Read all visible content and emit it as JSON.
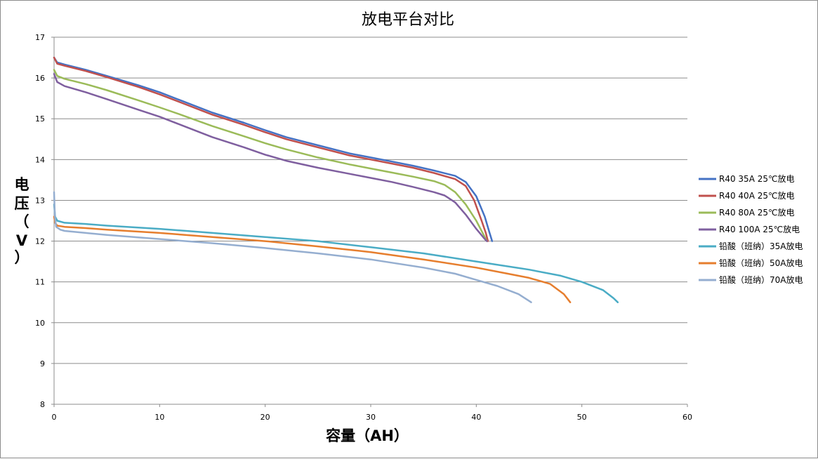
{
  "chart_data": {
    "type": "line",
    "title": "放电平台对比",
    "xlabel": "容量（AH）",
    "ylabel_chars": [
      "电",
      "压",
      "（",
      "V",
      "）"
    ],
    "xlim": [
      0,
      60
    ],
    "ylim": [
      8,
      17
    ],
    "x_ticks": [
      0,
      10,
      20,
      30,
      40,
      50,
      60
    ],
    "y_ticks": [
      8,
      9,
      10,
      11,
      12,
      13,
      14,
      15,
      16,
      17
    ],
    "grid": "horizontal",
    "legend_position": "right",
    "series": [
      {
        "name": "R40 35A 25℃放电",
        "color": "#4472c4",
        "points": [
          [
            0,
            16.5
          ],
          [
            0.3,
            16.38
          ],
          [
            1,
            16.33
          ],
          [
            3,
            16.2
          ],
          [
            5,
            16.05
          ],
          [
            8,
            15.82
          ],
          [
            10,
            15.65
          ],
          [
            12,
            15.45
          ],
          [
            15,
            15.15
          ],
          [
            18,
            14.9
          ],
          [
            20,
            14.72
          ],
          [
            22,
            14.55
          ],
          [
            25,
            14.35
          ],
          [
            28,
            14.15
          ],
          [
            30,
            14.05
          ],
          [
            32,
            13.95
          ],
          [
            34,
            13.85
          ],
          [
            36,
            13.73
          ],
          [
            38,
            13.6
          ],
          [
            39,
            13.45
          ],
          [
            40,
            13.1
          ],
          [
            40.8,
            12.6
          ],
          [
            41.2,
            12.25
          ],
          [
            41.5,
            12.0
          ]
        ]
      },
      {
        "name": "R40 40A 25℃放电",
        "color": "#c0504d",
        "points": [
          [
            0,
            16.5
          ],
          [
            0.3,
            16.35
          ],
          [
            1,
            16.3
          ],
          [
            3,
            16.17
          ],
          [
            5,
            16.02
          ],
          [
            8,
            15.78
          ],
          [
            10,
            15.6
          ],
          [
            12,
            15.4
          ],
          [
            15,
            15.1
          ],
          [
            18,
            14.85
          ],
          [
            20,
            14.67
          ],
          [
            22,
            14.5
          ],
          [
            25,
            14.3
          ],
          [
            28,
            14.1
          ],
          [
            30,
            14.0
          ],
          [
            32,
            13.9
          ],
          [
            34,
            13.8
          ],
          [
            36,
            13.67
          ],
          [
            38,
            13.52
          ],
          [
            39,
            13.35
          ],
          [
            39.8,
            13.0
          ],
          [
            40.5,
            12.5
          ],
          [
            40.9,
            12.2
          ],
          [
            41.1,
            12.0
          ]
        ]
      },
      {
        "name": "R40 80A 25℃放电",
        "color": "#9bbb59",
        "points": [
          [
            0,
            16.2
          ],
          [
            0.3,
            16.05
          ],
          [
            1,
            15.98
          ],
          [
            3,
            15.85
          ],
          [
            5,
            15.7
          ],
          [
            8,
            15.45
          ],
          [
            10,
            15.28
          ],
          [
            12,
            15.1
          ],
          [
            15,
            14.82
          ],
          [
            18,
            14.57
          ],
          [
            20,
            14.4
          ],
          [
            22,
            14.25
          ],
          [
            25,
            14.05
          ],
          [
            28,
            13.88
          ],
          [
            30,
            13.78
          ],
          [
            32,
            13.68
          ],
          [
            34,
            13.58
          ],
          [
            36,
            13.47
          ],
          [
            37,
            13.38
          ],
          [
            38,
            13.2
          ],
          [
            39,
            12.9
          ],
          [
            40,
            12.5
          ],
          [
            40.6,
            12.2
          ],
          [
            41.0,
            12.0
          ]
        ]
      },
      {
        "name": "R40 100A 25℃放电",
        "color": "#7f5f9f",
        "points": [
          [
            0,
            16.1
          ],
          [
            0.3,
            15.9
          ],
          [
            1,
            15.8
          ],
          [
            3,
            15.65
          ],
          [
            5,
            15.48
          ],
          [
            8,
            15.22
          ],
          [
            10,
            15.05
          ],
          [
            12,
            14.85
          ],
          [
            15,
            14.55
          ],
          [
            18,
            14.3
          ],
          [
            20,
            14.12
          ],
          [
            22,
            13.97
          ],
          [
            25,
            13.8
          ],
          [
            28,
            13.65
          ],
          [
            30,
            13.55
          ],
          [
            32,
            13.45
          ],
          [
            34,
            13.33
          ],
          [
            36,
            13.2
          ],
          [
            37,
            13.12
          ],
          [
            38,
            12.95
          ],
          [
            39,
            12.65
          ],
          [
            40,
            12.3
          ],
          [
            40.8,
            12.05
          ],
          [
            41.0,
            12.0
          ]
        ]
      },
      {
        "name": "铅酸（班纳）35A放电",
        "color": "#4aacc5",
        "points": [
          [
            0,
            12.9
          ],
          [
            0.1,
            12.6
          ],
          [
            0.3,
            12.5
          ],
          [
            1,
            12.45
          ],
          [
            3,
            12.42
          ],
          [
            5,
            12.38
          ],
          [
            10,
            12.3
          ],
          [
            15,
            12.2
          ],
          [
            20,
            12.1
          ],
          [
            25,
            12.0
          ],
          [
            30,
            11.85
          ],
          [
            35,
            11.7
          ],
          [
            40,
            11.5
          ],
          [
            45,
            11.3
          ],
          [
            48,
            11.15
          ],
          [
            50,
            11.0
          ],
          [
            52,
            10.8
          ],
          [
            53,
            10.6
          ],
          [
            53.4,
            10.5
          ]
        ]
      },
      {
        "name": "铅酸（班纳）50A放电",
        "color": "#e67e2e",
        "points": [
          [
            0,
            12.6
          ],
          [
            0.1,
            12.45
          ],
          [
            0.3,
            12.38
          ],
          [
            1,
            12.35
          ],
          [
            3,
            12.32
          ],
          [
            5,
            12.28
          ],
          [
            10,
            12.2
          ],
          [
            15,
            12.1
          ],
          [
            20,
            12.0
          ],
          [
            25,
            11.87
          ],
          [
            30,
            11.73
          ],
          [
            35,
            11.55
          ],
          [
            40,
            11.35
          ],
          [
            43,
            11.2
          ],
          [
            45,
            11.1
          ],
          [
            47,
            10.95
          ],
          [
            48.3,
            10.7
          ],
          [
            48.9,
            10.5
          ]
        ]
      },
      {
        "name": "铅酸（班纳）70A放电",
        "color": "#95aed0",
        "points": [
          [
            0,
            13.2
          ],
          [
            0.08,
            12.6
          ],
          [
            0.2,
            12.35
          ],
          [
            0.6,
            12.28
          ],
          [
            1,
            12.25
          ],
          [
            3,
            12.2
          ],
          [
            5,
            12.15
          ],
          [
            10,
            12.05
          ],
          [
            15,
            11.95
          ],
          [
            20,
            11.83
          ],
          [
            25,
            11.7
          ],
          [
            30,
            11.55
          ],
          [
            35,
            11.35
          ],
          [
            38,
            11.2
          ],
          [
            40,
            11.05
          ],
          [
            42,
            10.9
          ],
          [
            44,
            10.7
          ],
          [
            45.2,
            10.5
          ]
        ]
      }
    ]
  }
}
